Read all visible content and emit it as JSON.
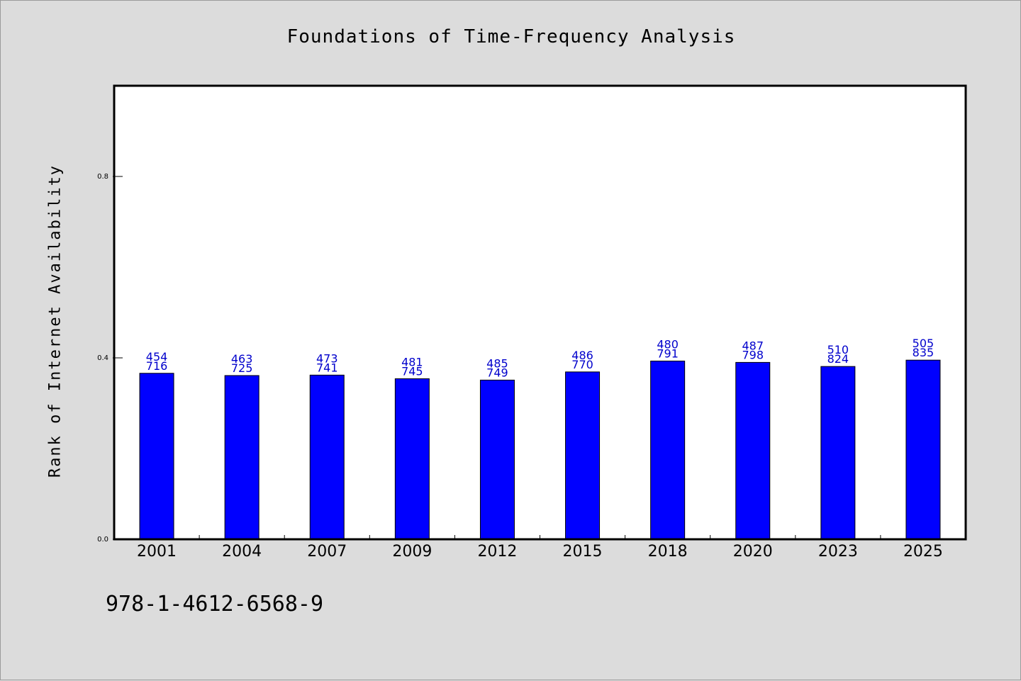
{
  "chart_data": {
    "type": "bar",
    "title": "Foundations of Time-Frequency Analysis",
    "xlabel": "",
    "ylabel": "Rank of Internet Availability",
    "categories": [
      "2001",
      "2004",
      "2007",
      "2009",
      "2012",
      "2015",
      "2018",
      "2020",
      "2023",
      "2025"
    ],
    "values": [
      0.366,
      0.361,
      0.362,
      0.354,
      0.351,
      0.369,
      0.393,
      0.39,
      0.381,
      0.395
    ],
    "data_labels": [
      [
        "454",
        "716"
      ],
      [
        "463",
        "725"
      ],
      [
        "473",
        "741"
      ],
      [
        "481",
        "745"
      ],
      [
        "485",
        "749"
      ],
      [
        "486",
        "770"
      ],
      [
        "480",
        "791"
      ],
      [
        "487",
        "798"
      ],
      [
        "510",
        "824"
      ],
      [
        "505",
        "835"
      ]
    ],
    "yticks": [
      "0.0",
      "0.4",
      "0.8"
    ],
    "ylim": [
      0,
      1.0
    ],
    "grid": false,
    "bar_color": "#0000ff",
    "label_color": "#0000cc"
  },
  "footer": "978-1-4612-6568-9"
}
